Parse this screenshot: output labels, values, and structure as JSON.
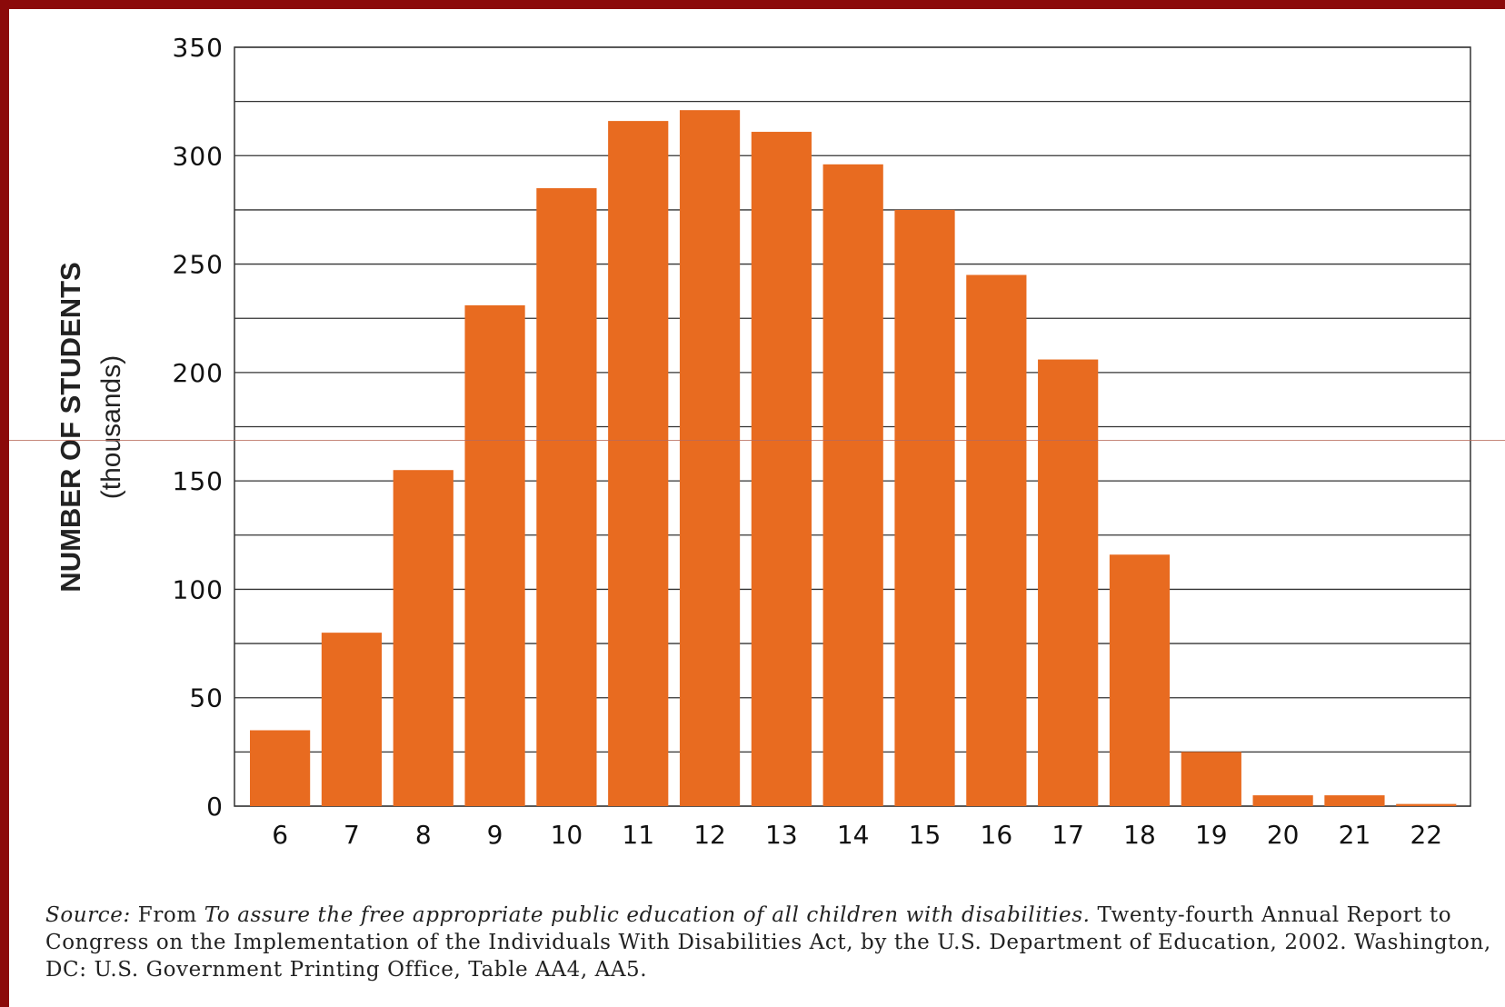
{
  "chart_data": {
    "type": "bar",
    "categories": [
      "6",
      "7",
      "8",
      "9",
      "10",
      "11",
      "12",
      "13",
      "14",
      "15",
      "16",
      "17",
      "18",
      "19",
      "20",
      "21",
      "22"
    ],
    "values": [
      35,
      80,
      155,
      231,
      285,
      316,
      321,
      311,
      296,
      275,
      245,
      206,
      116,
      25,
      5,
      5,
      1
    ],
    "title": "",
    "xlabel": "",
    "ylabel": "NUMBER OF STUDENTS",
    "ylabel_sub": "(thousands)",
    "ylim": [
      0,
      350
    ],
    "yticks": [
      0,
      50,
      100,
      150,
      200,
      250,
      300,
      350
    ],
    "grid": true,
    "bar_color": "#e86b20"
  },
  "source": {
    "label": "Source:",
    "prefix": "From",
    "title": "To assure the free appropriate public education of all children with disabilities.",
    "rest": "Twenty-fourth Annual Report to Congress on the Implementation of the Individuals With Disabilities Act, by the U.S. Department of Education, 2002. Washington, DC: U.S. Government Printing Office, Table AA4, AA5."
  }
}
